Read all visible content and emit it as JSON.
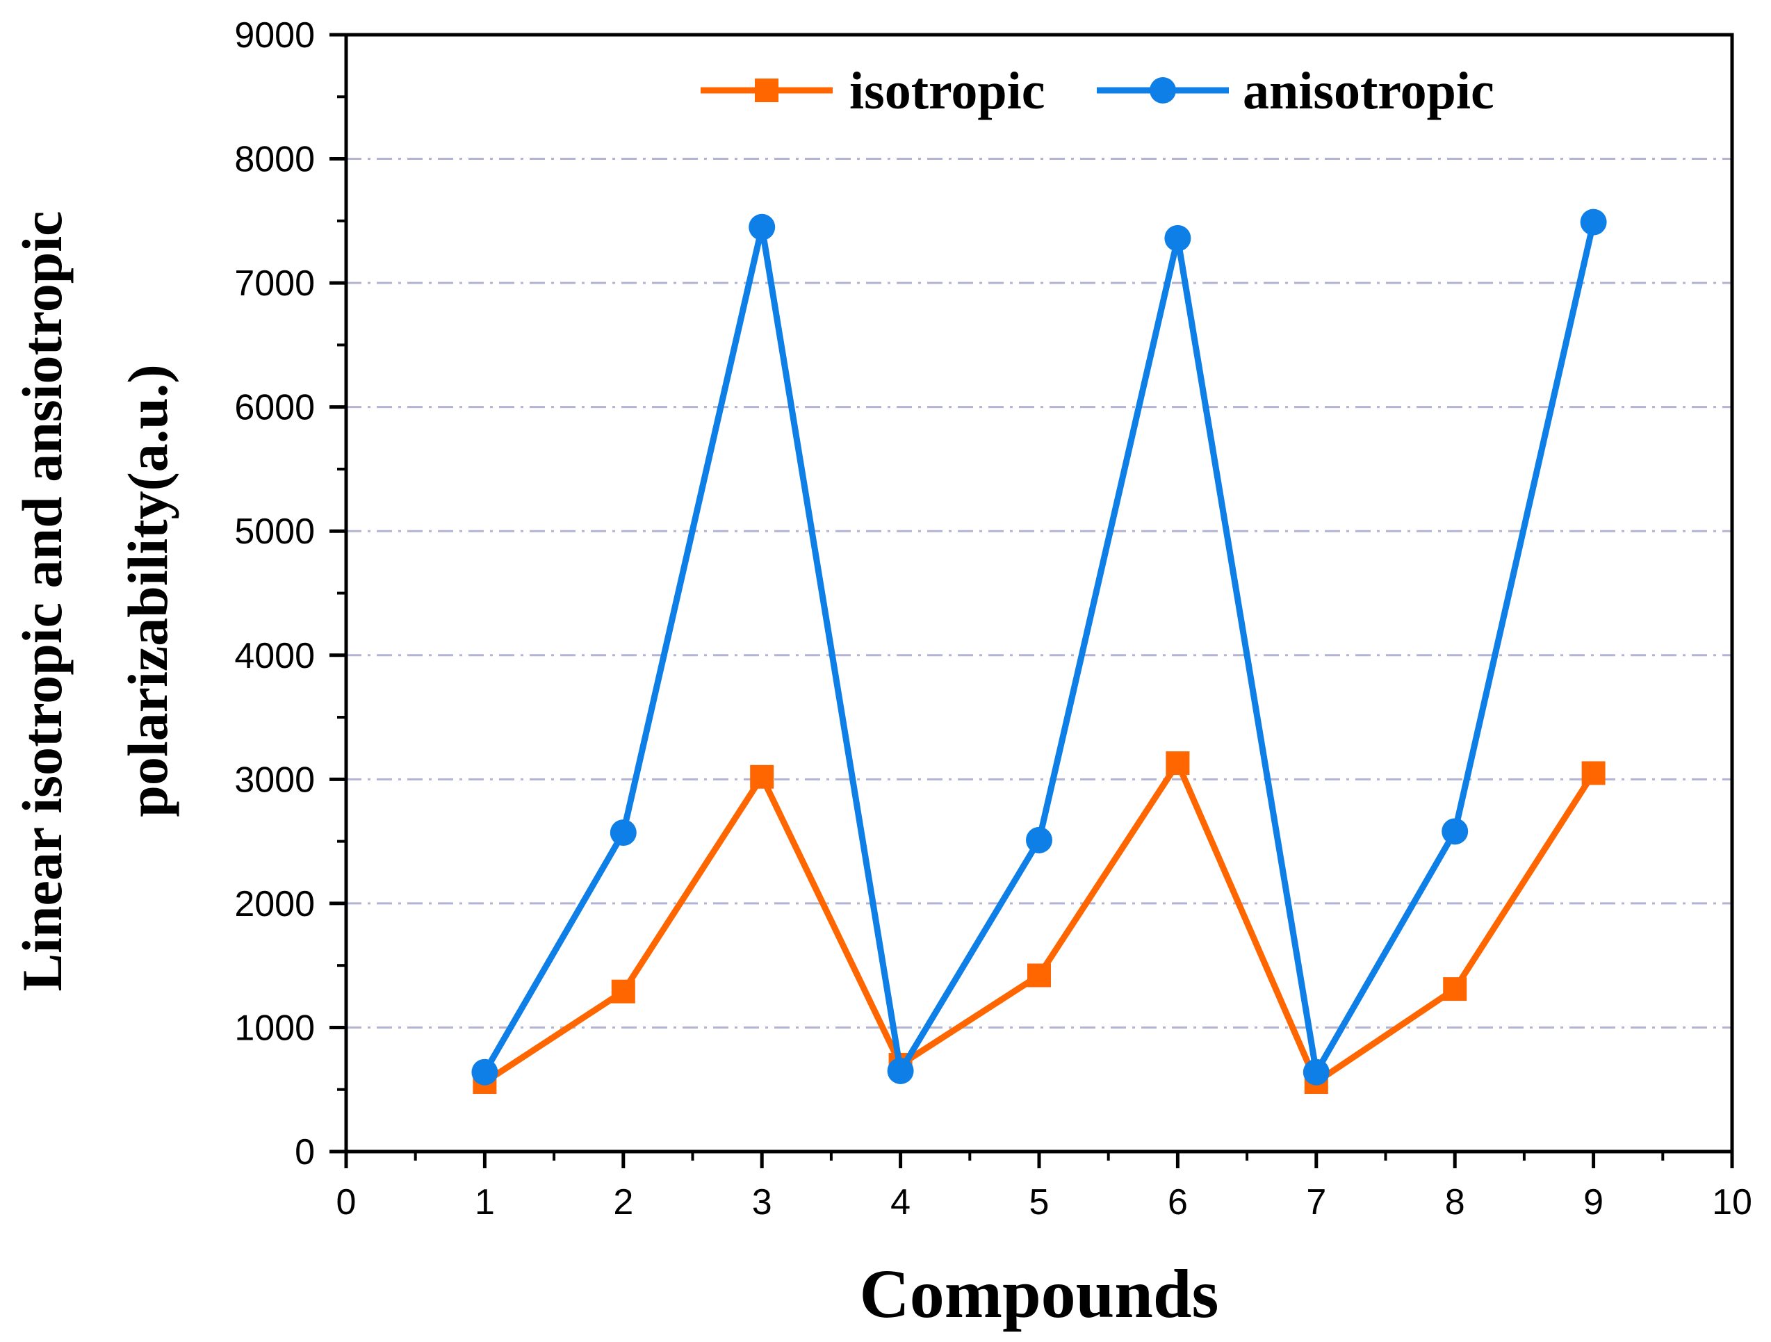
{
  "chart_data": {
    "type": "line",
    "title": "",
    "xlabel": "Compounds",
    "ylabel_lines": [
      "Linear isotropic and ansiotropic",
      "polarizability(a.u.)"
    ],
    "x": [
      1,
      2,
      3,
      4,
      5,
      6,
      7,
      8,
      9
    ],
    "xlim": [
      0,
      10
    ],
    "ylim": [
      0,
      9000
    ],
    "xticks": [
      0,
      1,
      2,
      3,
      4,
      5,
      6,
      7,
      8,
      9,
      10
    ],
    "yticks": [
      0,
      1000,
      2000,
      3000,
      4000,
      5000,
      6000,
      7000,
      8000,
      9000
    ],
    "grid": "horizontal dash-dot",
    "legend_position": "top",
    "series": [
      {
        "name": "isotropic",
        "marker": "square",
        "color": "#FF6600",
        "values": [
          560,
          1290,
          3020,
          700,
          1420,
          3130,
          560,
          1310,
          3050
        ]
      },
      {
        "name": "anisotropic",
        "marker": "circle",
        "color": "#0F7FE8",
        "values": [
          640,
          2570,
          7450,
          650,
          2510,
          7360,
          640,
          2580,
          7490
        ]
      }
    ]
  }
}
